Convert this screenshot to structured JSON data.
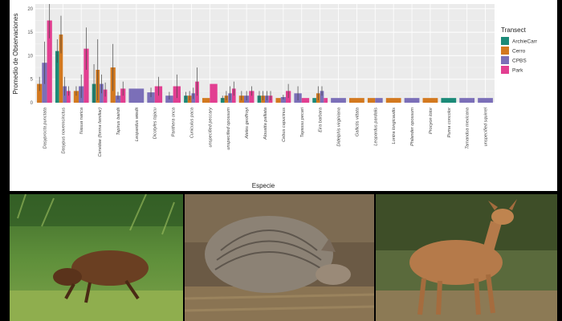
{
  "colors": {
    "ArchieCarr": "#1b8a78",
    "Cerro": "#d3791f",
    "CPBS": "#7b6fb8",
    "Park": "#e23f91"
  },
  "photos": [
    {
      "subject": "agouti-photo"
    },
    {
      "subject": "armadillo-photo"
    },
    {
      "subject": "deer-photo"
    }
  ],
  "chart_data": {
    "type": "bar",
    "ylabel": "Promedio de Observaciones",
    "xlabel": "Especie",
    "ylim": [
      0,
      21
    ],
    "yticks": [
      0,
      5,
      10,
      15,
      20
    ],
    "legend_title": "Transect",
    "legend_position": "right",
    "grid": true,
    "series_names": [
      "ArchieCarr",
      "Cerro",
      "CPBS",
      "Park"
    ],
    "categories": [
      "Dasyprocta punctata",
      "Dasypus novemcinctus",
      "Nasua narica",
      "Cervidae (forma familiar)",
      "Tapirus bairdii",
      "Leopardus wiedii",
      "Dicotyles tajacu",
      "Panthera onca",
      "Cuniculus paca",
      "unspecified peccary",
      "unspecified opossum",
      "Ateles geoffroyi",
      "Alouatta palliata",
      "Cebus capucinus",
      "Tayassu pecari",
      "Eira barbara",
      "Didelphis virginiana",
      "Gallictis vittata",
      "Leopardus pardalis",
      "Lontra longicaudis",
      "Philander opossum",
      "Procyon lotor",
      "Puma concolor",
      "Tamandua mexicana",
      "unspecified squirrel"
    ],
    "bars": [
      [
        {
          "t": "Cerro",
          "v": 4,
          "e": 1.5
        },
        {
          "t": "CPBS",
          "v": 8.5,
          "e": 4.5
        },
        {
          "t": "Park",
          "v": 17.5,
          "e": 3.8
        }
      ],
      [
        {
          "t": "ArchieCarr",
          "v": 11,
          "e": 2.5
        },
        {
          "t": "Cerro",
          "v": 14.5,
          "e": 4
        },
        {
          "t": "CPBS",
          "v": 3.5,
          "e": 2
        },
        {
          "t": "Park",
          "v": 2.5,
          "e": 1
        }
      ],
      [
        {
          "t": "Cerro",
          "v": 2.5,
          "e": 1
        },
        {
          "t": "CPBS",
          "v": 3.5,
          "e": 2.5
        },
        {
          "t": "Park",
          "v": 11.5,
          "e": 4.5
        }
      ],
      [
        {
          "t": "ArchieCarr",
          "v": 4,
          "e": 4.2
        },
        {
          "t": "Cerro",
          "v": 7,
          "e": 6.5
        },
        {
          "t": "CPBS",
          "v": 4,
          "e": 2
        },
        {
          "t": "Park",
          "v": 2.8,
          "e": 1.5
        }
      ],
      [
        {
          "t": "Cerro",
          "v": 7.5,
          "e": 5
        },
        {
          "t": "CPBS",
          "v": 1.5,
          "e": 0.8
        },
        {
          "t": "Park",
          "v": 3,
          "e": 1.5
        }
      ],
      [
        {
          "t": "CPBS",
          "v": 3,
          "e": 0
        }
      ],
      [
        {
          "t": "CPBS",
          "v": 2.2,
          "e": 1
        },
        {
          "t": "Park",
          "v": 3.5,
          "e": 2
        }
      ],
      [
        {
          "t": "CPBS",
          "v": 1.5,
          "e": 0.8
        },
        {
          "t": "Park",
          "v": 3.5,
          "e": 2.5
        }
      ],
      [
        {
          "t": "ArchieCarr",
          "v": 1.5,
          "e": 0.8
        },
        {
          "t": "Cerro",
          "v": 1.5,
          "e": 1
        },
        {
          "t": "CPBS",
          "v": 2,
          "e": 1.2
        },
        {
          "t": "Park",
          "v": 4.5,
          "e": 3
        }
      ],
      [
        {
          "t": "Cerro",
          "v": 1,
          "e": 0
        },
        {
          "t": "Park",
          "v": 4,
          "e": 0
        }
      ],
      [
        {
          "t": "ArchieCarr",
          "v": 1,
          "e": 0.5
        },
        {
          "t": "Cerro",
          "v": 1.5,
          "e": 1
        },
        {
          "t": "CPBS",
          "v": 2,
          "e": 1.5
        },
        {
          "t": "Park",
          "v": 3,
          "e": 1.5
        }
      ],
      [
        {
          "t": "Cerro",
          "v": 1.5,
          "e": 1
        },
        {
          "t": "CPBS",
          "v": 1.5,
          "e": 1
        },
        {
          "t": "Park",
          "v": 2.5,
          "e": 1
        }
      ],
      [
        {
          "t": "ArchieCarr",
          "v": 1.5,
          "e": 1
        },
        {
          "t": "Cerro",
          "v": 1.5,
          "e": 1
        },
        {
          "t": "CPBS",
          "v": 1.5,
          "e": 1
        },
        {
          "t": "Park",
          "v": 1.5,
          "e": 1
        }
      ],
      [
        {
          "t": "Cerro",
          "v": 1,
          "e": 0
        },
        {
          "t": "CPBS",
          "v": 1.2,
          "e": 0.5
        },
        {
          "t": "Park",
          "v": 2.5,
          "e": 1.5
        }
      ],
      [
        {
          "t": "CPBS",
          "v": 2,
          "e": 1.5
        },
        {
          "t": "Park",
          "v": 1,
          "e": 0
        }
      ],
      [
        {
          "t": "ArchieCarr",
          "v": 1,
          "e": 0
        },
        {
          "t": "Cerro",
          "v": 2,
          "e": 1.5
        },
        {
          "t": "CPBS",
          "v": 2.5,
          "e": 1
        },
        {
          "t": "Park",
          "v": 1,
          "e": 0
        }
      ],
      [
        {
          "t": "CPBS",
          "v": 1,
          "e": 0
        }
      ],
      [
        {
          "t": "Cerro",
          "v": 1,
          "e": 0
        }
      ],
      [
        {
          "t": "Cerro",
          "v": 1,
          "e": 0
        },
        {
          "t": "CPBS",
          "v": 1,
          "e": 0
        }
      ],
      [
        {
          "t": "Cerro",
          "v": 1,
          "e": 0
        }
      ],
      [
        {
          "t": "CPBS",
          "v": 1,
          "e": 0
        }
      ],
      [
        {
          "t": "Cerro",
          "v": 1,
          "e": 0
        }
      ],
      [
        {
          "t": "ArchieCarr",
          "v": 1,
          "e": 0
        }
      ],
      [
        {
          "t": "CPBS",
          "v": 1,
          "e": 0
        }
      ],
      [
        {
          "t": "CPBS",
          "v": 1,
          "e": 0
        }
      ]
    ]
  }
}
